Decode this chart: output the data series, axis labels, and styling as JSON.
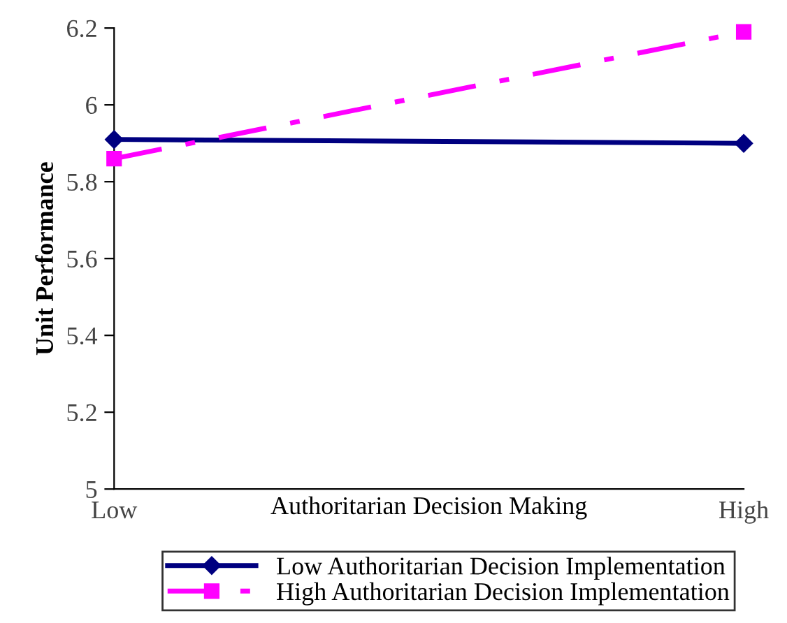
{
  "chart_data": {
    "type": "line",
    "xlabel": "Authoritarian Decision Making",
    "ylabel": "Unit Performance",
    "categories": [
      "Low",
      "High"
    ],
    "series": [
      {
        "name": "Low Authoritarian Decision Implementation",
        "color": "#000080",
        "values": [
          5.91,
          5.9
        ],
        "marker": "diamond",
        "line_style": "solid"
      },
      {
        "name": "High Authoritarian Decision Implementation",
        "color": "#ff00ff",
        "values": [
          5.86,
          6.19
        ],
        "marker": "square",
        "line_style": "dashed"
      }
    ],
    "ylim": [
      5,
      6.2
    ],
    "yticks": [
      5,
      5.2,
      5.4,
      5.6,
      5.8,
      6,
      6.2
    ],
    "grid": false,
    "legend": "bottom"
  }
}
